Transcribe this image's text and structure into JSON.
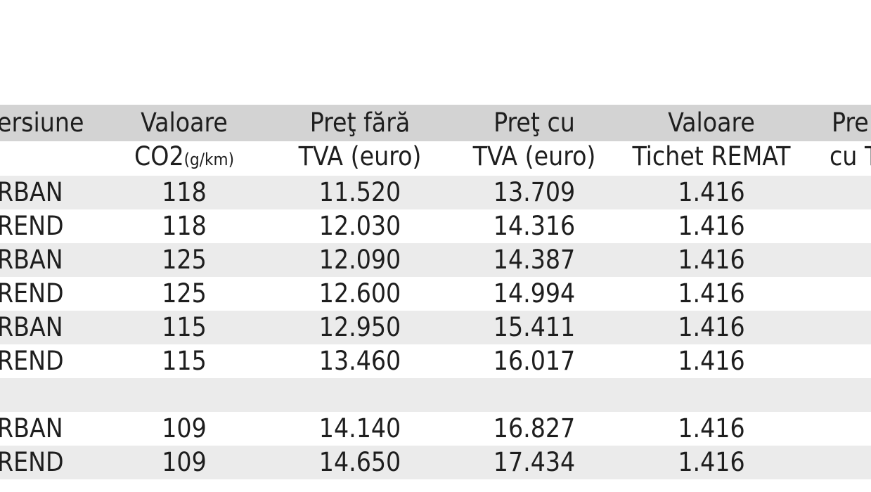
{
  "headers": {
    "versiune": "ersiune",
    "co2_line1": "Valoare",
    "co2_line2": "CO2",
    "co2_unit": "(g/km)",
    "pret_fara_line1": "Preţ fără",
    "pret_fara_line2": "TVA (euro)",
    "pret_cu_line1": "Preţ cu",
    "pret_cu_line2": "TVA (euro)",
    "remat_line1": "Valoare",
    "remat_line2": "Tichet REMAT",
    "last_line1": "Pre",
    "last_line2": "cu T"
  },
  "rows": [
    {
      "version": "RBAN",
      "co2": "118",
      "pret_fara": "11.520",
      "pret_cu": "13.709",
      "remat": "1.416"
    },
    {
      "version": "REND",
      "co2": "118",
      "pret_fara": "12.030",
      "pret_cu": "14.316",
      "remat": "1.416"
    },
    {
      "version": "RBAN",
      "co2": "125",
      "pret_fara": "12.090",
      "pret_cu": "14.387",
      "remat": "1.416"
    },
    {
      "version": "REND",
      "co2": "125",
      "pret_fara": "12.600",
      "pret_cu": "14.994",
      "remat": "1.416"
    },
    {
      "version": "RBAN",
      "co2": "115",
      "pret_fara": "12.950",
      "pret_cu": "15.411",
      "remat": "1.416"
    },
    {
      "version": "REND",
      "co2": "115",
      "pret_fara": "13.460",
      "pret_cu": "16.017",
      "remat": "1.416"
    },
    {
      "version": "",
      "co2": "",
      "pret_fara": "",
      "pret_cu": "",
      "remat": ""
    },
    {
      "version": "RBAN",
      "co2": "109",
      "pret_fara": "14.140",
      "pret_cu": "16.827",
      "remat": "1.416"
    },
    {
      "version": "REND",
      "co2": "109",
      "pret_fara": "14.650",
      "pret_cu": "17.434",
      "remat": "1.416"
    }
  ],
  "colors": {
    "header_band": "#d3d3d3",
    "row_band": "#ebebeb",
    "text": "#1e1e1e"
  }
}
